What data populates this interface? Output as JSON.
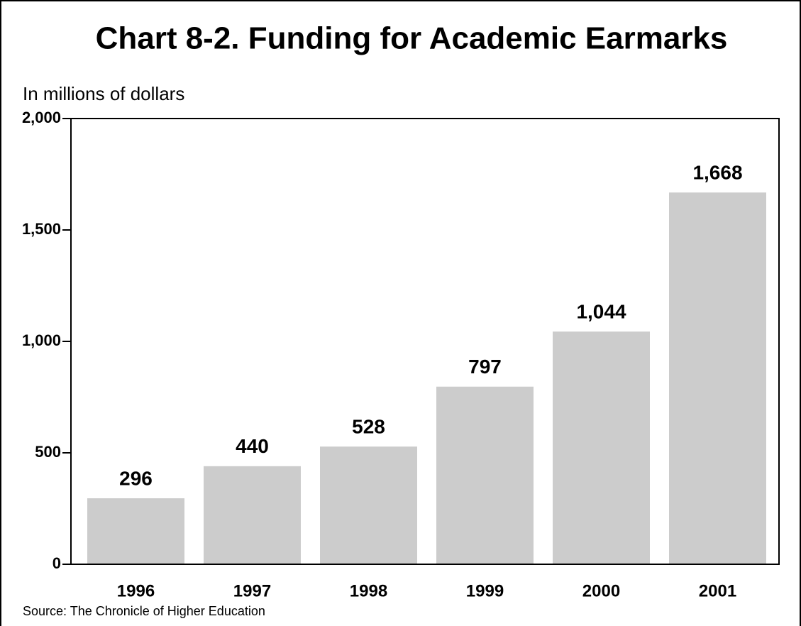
{
  "chart_data": {
    "type": "bar",
    "title": "Chart 8-2. Funding for Academic Earmarks",
    "y_label": "In millions of dollars",
    "source": "Source: The Chronicle of Higher Education",
    "categories": [
      "1996",
      "1997",
      "1998",
      "1999",
      "2000",
      "2001"
    ],
    "values": [
      296,
      440,
      528,
      797,
      1044,
      1668
    ],
    "value_labels": [
      "296",
      "440",
      "528",
      "797",
      "1,044",
      "1,668"
    ],
    "color": "#cccccc",
    "ylim": [
      0,
      2000
    ],
    "yticks": [
      0,
      500,
      {
        "value": 1000,
        "label": "1,000"
      },
      {
        "value": 1500,
        "label": "1,500"
      },
      {
        "value": 2000,
        "label": "2,000"
      }
    ],
    "grid": false
  }
}
